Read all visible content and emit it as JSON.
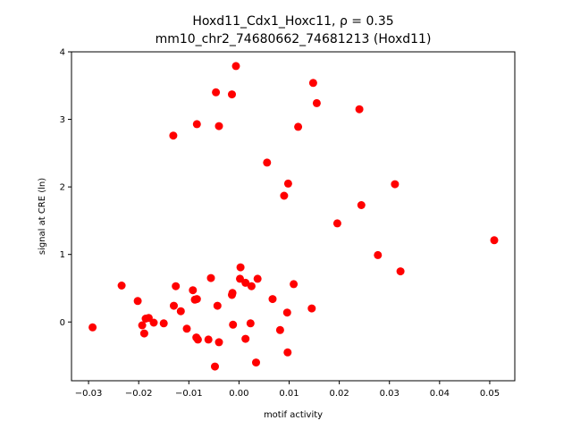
{
  "chart_data": {
    "type": "scatter",
    "title_line1": "Hoxd11_Cdx1_Hoxc11, ρ = 0.35",
    "title_line2": "mm10_chr2_74680662_74681213 (Hoxd11)",
    "xlabel": "motif activity",
    "ylabel": "signal at CRE (ln)",
    "xlim": [
      -0.0334,
      0.055
    ],
    "ylim": [
      -0.87,
      4.0
    ],
    "grid": false,
    "marker_color": "#ff0000",
    "x_ticks": [
      {
        "value": -0.03,
        "label": "−0.03"
      },
      {
        "value": -0.02,
        "label": "−0.02"
      },
      {
        "value": -0.01,
        "label": "−0.01"
      },
      {
        "value": 0.0,
        "label": "0.00"
      },
      {
        "value": 0.01,
        "label": "0.01"
      },
      {
        "value": 0.02,
        "label": "0.02"
      },
      {
        "value": 0.03,
        "label": "0.03"
      },
      {
        "value": 0.04,
        "label": "0.04"
      },
      {
        "value": 0.05,
        "label": "0.05"
      }
    ],
    "y_ticks": [
      {
        "value": 0,
        "label": "0"
      },
      {
        "value": 1,
        "label": "1"
      },
      {
        "value": 2,
        "label": "2"
      },
      {
        "value": 3,
        "label": "3"
      },
      {
        "value": 4,
        "label": "4"
      }
    ],
    "points": [
      {
        "x": -0.0292,
        "y": -0.08
      },
      {
        "x": -0.0234,
        "y": 0.54
      },
      {
        "x": -0.0202,
        "y": 0.31
      },
      {
        "x": -0.0193,
        "y": -0.05
      },
      {
        "x": -0.0189,
        "y": -0.17
      },
      {
        "x": -0.0186,
        "y": 0.05
      },
      {
        "x": -0.018,
        "y": 0.06
      },
      {
        "x": -0.017,
        "y": -0.01
      },
      {
        "x": -0.015,
        "y": -0.02
      },
      {
        "x": -0.013,
        "y": 0.24
      },
      {
        "x": -0.0126,
        "y": 0.53
      },
      {
        "x": -0.0116,
        "y": 0.16
      },
      {
        "x": -0.0104,
        "y": -0.1
      },
      {
        "x": -0.0092,
        "y": 0.47
      },
      {
        "x": -0.0088,
        "y": 0.33
      },
      {
        "x": -0.0084,
        "y": 0.34
      },
      {
        "x": -0.0085,
        "y": -0.23
      },
      {
        "x": -0.0082,
        "y": -0.26
      },
      {
        "x": -0.0061,
        "y": -0.26
      },
      {
        "x": -0.0056,
        "y": 0.65
      },
      {
        "x": -0.0043,
        "y": 0.24
      },
      {
        "x": -0.004,
        "y": -0.3
      },
      {
        "x": -0.0048,
        "y": -0.66
      },
      {
        "x": -0.0014,
        "y": 0.4
      },
      {
        "x": -0.0013,
        "y": 0.43
      },
      {
        "x": -0.0012,
        "y": -0.04
      },
      {
        "x": 0.0002,
        "y": 0.64
      },
      {
        "x": 0.0003,
        "y": 0.81
      },
      {
        "x": 0.0013,
        "y": 0.58
      },
      {
        "x": 0.0013,
        "y": -0.25
      },
      {
        "x": 0.0023,
        "y": -0.02
      },
      {
        "x": 0.0025,
        "y": 0.53
      },
      {
        "x": 0.0037,
        "y": 0.64
      },
      {
        "x": 0.0034,
        "y": -0.6
      },
      {
        "x": 0.0067,
        "y": 0.34
      },
      {
        "x": 0.0082,
        "y": -0.12
      },
      {
        "x": 0.0096,
        "y": 0.14
      },
      {
        "x": 0.0097,
        "y": -0.45
      },
      {
        "x": 0.0109,
        "y": 0.56
      },
      {
        "x": 0.0145,
        "y": 0.2
      },
      {
        "x": 0.0056,
        "y": 2.36
      },
      {
        "x": 0.009,
        "y": 1.87
      },
      {
        "x": 0.0098,
        "y": 2.05
      },
      {
        "x": 0.0118,
        "y": 2.89
      },
      {
        "x": 0.0148,
        "y": 3.54
      },
      {
        "x": 0.0155,
        "y": 3.24
      },
      {
        "x": 0.0196,
        "y": 1.46
      },
      {
        "x": 0.024,
        "y": 3.15
      },
      {
        "x": 0.0244,
        "y": 1.73
      },
      {
        "x": 0.0277,
        "y": 0.99
      },
      {
        "x": 0.0311,
        "y": 2.04
      },
      {
        "x": 0.0322,
        "y": 0.75
      },
      {
        "x": 0.0509,
        "y": 1.21
      },
      {
        "x": -0.0131,
        "y": 2.76
      },
      {
        "x": -0.0084,
        "y": 2.93
      },
      {
        "x": -0.0046,
        "y": 3.4
      },
      {
        "x": -0.004,
        "y": 2.9
      },
      {
        "x": -0.0014,
        "y": 3.37
      },
      {
        "x": -0.0006,
        "y": 3.79
      }
    ]
  }
}
